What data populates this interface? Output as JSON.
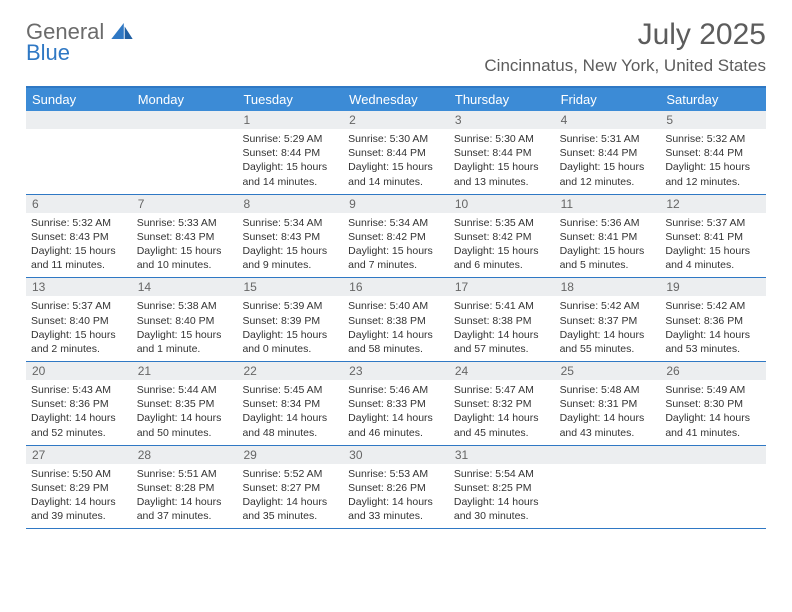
{
  "brand": {
    "line1": "General",
    "line2": "Blue"
  },
  "header": {
    "month_title": "July 2025",
    "location": "Cincinnatus, New York, United States"
  },
  "colors": {
    "accent": "#2f78c4",
    "header_bg": "#3c8bd6",
    "row_band": "#eceef0",
    "title_text": "#5c5c5c",
    "body_text": "#333333",
    "page_bg": "#ffffff"
  },
  "calendar": {
    "day_names": [
      "Sunday",
      "Monday",
      "Tuesday",
      "Wednesday",
      "Thursday",
      "Friday",
      "Saturday"
    ],
    "weeks": [
      [
        {
          "num": "",
          "sunrise": "",
          "sunset": "",
          "daylight": ""
        },
        {
          "num": "",
          "sunrise": "",
          "sunset": "",
          "daylight": ""
        },
        {
          "num": "1",
          "sunrise": "Sunrise: 5:29 AM",
          "sunset": "Sunset: 8:44 PM",
          "daylight": "Daylight: 15 hours and 14 minutes."
        },
        {
          "num": "2",
          "sunrise": "Sunrise: 5:30 AM",
          "sunset": "Sunset: 8:44 PM",
          "daylight": "Daylight: 15 hours and 14 minutes."
        },
        {
          "num": "3",
          "sunrise": "Sunrise: 5:30 AM",
          "sunset": "Sunset: 8:44 PM",
          "daylight": "Daylight: 15 hours and 13 minutes."
        },
        {
          "num": "4",
          "sunrise": "Sunrise: 5:31 AM",
          "sunset": "Sunset: 8:44 PM",
          "daylight": "Daylight: 15 hours and 12 minutes."
        },
        {
          "num": "5",
          "sunrise": "Sunrise: 5:32 AM",
          "sunset": "Sunset: 8:44 PM",
          "daylight": "Daylight: 15 hours and 12 minutes."
        }
      ],
      [
        {
          "num": "6",
          "sunrise": "Sunrise: 5:32 AM",
          "sunset": "Sunset: 8:43 PM",
          "daylight": "Daylight: 15 hours and 11 minutes."
        },
        {
          "num": "7",
          "sunrise": "Sunrise: 5:33 AM",
          "sunset": "Sunset: 8:43 PM",
          "daylight": "Daylight: 15 hours and 10 minutes."
        },
        {
          "num": "8",
          "sunrise": "Sunrise: 5:34 AM",
          "sunset": "Sunset: 8:43 PM",
          "daylight": "Daylight: 15 hours and 9 minutes."
        },
        {
          "num": "9",
          "sunrise": "Sunrise: 5:34 AM",
          "sunset": "Sunset: 8:42 PM",
          "daylight": "Daylight: 15 hours and 7 minutes."
        },
        {
          "num": "10",
          "sunrise": "Sunrise: 5:35 AM",
          "sunset": "Sunset: 8:42 PM",
          "daylight": "Daylight: 15 hours and 6 minutes."
        },
        {
          "num": "11",
          "sunrise": "Sunrise: 5:36 AM",
          "sunset": "Sunset: 8:41 PM",
          "daylight": "Daylight: 15 hours and 5 minutes."
        },
        {
          "num": "12",
          "sunrise": "Sunrise: 5:37 AM",
          "sunset": "Sunset: 8:41 PM",
          "daylight": "Daylight: 15 hours and 4 minutes."
        }
      ],
      [
        {
          "num": "13",
          "sunrise": "Sunrise: 5:37 AM",
          "sunset": "Sunset: 8:40 PM",
          "daylight": "Daylight: 15 hours and 2 minutes."
        },
        {
          "num": "14",
          "sunrise": "Sunrise: 5:38 AM",
          "sunset": "Sunset: 8:40 PM",
          "daylight": "Daylight: 15 hours and 1 minute."
        },
        {
          "num": "15",
          "sunrise": "Sunrise: 5:39 AM",
          "sunset": "Sunset: 8:39 PM",
          "daylight": "Daylight: 15 hours and 0 minutes."
        },
        {
          "num": "16",
          "sunrise": "Sunrise: 5:40 AM",
          "sunset": "Sunset: 8:38 PM",
          "daylight": "Daylight: 14 hours and 58 minutes."
        },
        {
          "num": "17",
          "sunrise": "Sunrise: 5:41 AM",
          "sunset": "Sunset: 8:38 PM",
          "daylight": "Daylight: 14 hours and 57 minutes."
        },
        {
          "num": "18",
          "sunrise": "Sunrise: 5:42 AM",
          "sunset": "Sunset: 8:37 PM",
          "daylight": "Daylight: 14 hours and 55 minutes."
        },
        {
          "num": "19",
          "sunrise": "Sunrise: 5:42 AM",
          "sunset": "Sunset: 8:36 PM",
          "daylight": "Daylight: 14 hours and 53 minutes."
        }
      ],
      [
        {
          "num": "20",
          "sunrise": "Sunrise: 5:43 AM",
          "sunset": "Sunset: 8:36 PM",
          "daylight": "Daylight: 14 hours and 52 minutes."
        },
        {
          "num": "21",
          "sunrise": "Sunrise: 5:44 AM",
          "sunset": "Sunset: 8:35 PM",
          "daylight": "Daylight: 14 hours and 50 minutes."
        },
        {
          "num": "22",
          "sunrise": "Sunrise: 5:45 AM",
          "sunset": "Sunset: 8:34 PM",
          "daylight": "Daylight: 14 hours and 48 minutes."
        },
        {
          "num": "23",
          "sunrise": "Sunrise: 5:46 AM",
          "sunset": "Sunset: 8:33 PM",
          "daylight": "Daylight: 14 hours and 46 minutes."
        },
        {
          "num": "24",
          "sunrise": "Sunrise: 5:47 AM",
          "sunset": "Sunset: 8:32 PM",
          "daylight": "Daylight: 14 hours and 45 minutes."
        },
        {
          "num": "25",
          "sunrise": "Sunrise: 5:48 AM",
          "sunset": "Sunset: 8:31 PM",
          "daylight": "Daylight: 14 hours and 43 minutes."
        },
        {
          "num": "26",
          "sunrise": "Sunrise: 5:49 AM",
          "sunset": "Sunset: 8:30 PM",
          "daylight": "Daylight: 14 hours and 41 minutes."
        }
      ],
      [
        {
          "num": "27",
          "sunrise": "Sunrise: 5:50 AM",
          "sunset": "Sunset: 8:29 PM",
          "daylight": "Daylight: 14 hours and 39 minutes."
        },
        {
          "num": "28",
          "sunrise": "Sunrise: 5:51 AM",
          "sunset": "Sunset: 8:28 PM",
          "daylight": "Daylight: 14 hours and 37 minutes."
        },
        {
          "num": "29",
          "sunrise": "Sunrise: 5:52 AM",
          "sunset": "Sunset: 8:27 PM",
          "daylight": "Daylight: 14 hours and 35 minutes."
        },
        {
          "num": "30",
          "sunrise": "Sunrise: 5:53 AM",
          "sunset": "Sunset: 8:26 PM",
          "daylight": "Daylight: 14 hours and 33 minutes."
        },
        {
          "num": "31",
          "sunrise": "Sunrise: 5:54 AM",
          "sunset": "Sunset: 8:25 PM",
          "daylight": "Daylight: 14 hours and 30 minutes."
        },
        {
          "num": "",
          "sunrise": "",
          "sunset": "",
          "daylight": ""
        },
        {
          "num": "",
          "sunrise": "",
          "sunset": "",
          "daylight": ""
        }
      ]
    ]
  }
}
